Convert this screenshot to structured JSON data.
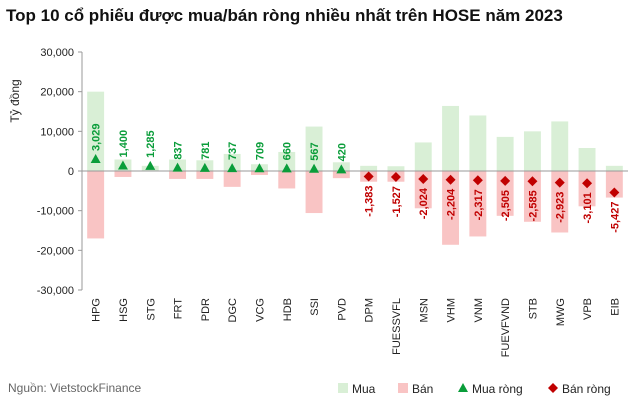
{
  "chart_data": {
    "type": "bar",
    "title": "Top 10 cổ phiếu được mua/bán ròng nhiều nhất trên HOSE năm 2023",
    "ylabel": "Tỷ đồng",
    "ylim": [
      -30000,
      30000
    ],
    "yticks": [
      30000,
      20000,
      10000,
      0,
      -10000,
      -20000,
      -30000
    ],
    "ytick_labels": [
      "30,000",
      "20,000",
      "10,000",
      "0",
      "-10,000",
      "-20,000",
      "-30,000"
    ],
    "categories": [
      "HPG",
      "HSG",
      "STG",
      "FRT",
      "PDR",
      "DGC",
      "VCG",
      "HDB",
      "SSI",
      "PVD",
      "DPM",
      "FUESSVFL",
      "MSN",
      "VHM",
      "VNM",
      "FUEVFVND",
      "STB",
      "MWG",
      "VPB",
      "EIB"
    ],
    "series": [
      {
        "name": "Mua",
        "kind": "bar",
        "color": "#d9efd6",
        "values": [
          20000,
          2900,
          1300,
          2900,
          2700,
          4300,
          1700,
          4800,
          11200,
          2200,
          1300,
          1200,
          7200,
          16400,
          14000,
          8600,
          10000,
          12500,
          5800,
          1300
        ]
      },
      {
        "name": "Bán",
        "kind": "bar",
        "color": "#f9c4c4",
        "values": [
          -17000,
          -1500,
          0,
          -2000,
          -2000,
          -4000,
          -1000,
          -4400,
          -10600,
          -1800,
          -2700,
          -2700,
          -9400,
          -18600,
          -16500,
          -11300,
          -12800,
          -15500,
          -8900,
          -6700
        ]
      },
      {
        "name": "Mua ròng",
        "kind": "marker",
        "marker": "triangle",
        "color": "#0a9d3a",
        "values": [
          3029,
          1400,
          1285,
          837,
          781,
          737,
          709,
          660,
          567,
          420,
          null,
          null,
          null,
          null,
          null,
          null,
          null,
          null,
          null,
          null
        ],
        "labels": [
          "3,029",
          "1,400",
          "1,285",
          "837",
          "781",
          "737",
          "709",
          "660",
          "567",
          "420",
          "",
          "",
          "",
          "",
          "",
          "",
          "",
          "",
          "",
          ""
        ]
      },
      {
        "name": "Bán ròng",
        "kind": "marker",
        "marker": "diamond",
        "color": "#c00000",
        "values": [
          null,
          null,
          null,
          null,
          null,
          null,
          null,
          null,
          null,
          null,
          -1383,
          -1527,
          -2024,
          -2204,
          -2317,
          -2505,
          -2585,
          -2923,
          -3101,
          -5427
        ],
        "labels": [
          "",
          "",
          "",
          "",
          "",
          "",
          "",
          "",
          "",
          "",
          "-1,383",
          "-1,527",
          "-2,024",
          "-2,204",
          "-2,317",
          "-2,505",
          "-2,585",
          "-2,923",
          "-3,101",
          "-5,427"
        ]
      }
    ],
    "legend": {
      "position": "bottom-right",
      "items": [
        "Mua",
        "Bán",
        "Mua ròng",
        "Bán ròng"
      ]
    },
    "grid": false,
    "source": "Nguồn:  VietstockFinance"
  }
}
